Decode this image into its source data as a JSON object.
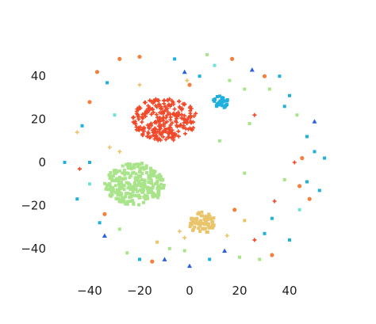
{
  "chart_data": {
    "type": "scatter",
    "title": "",
    "xlabel": "",
    "ylabel": "",
    "xlim": [
      -55,
      57
    ],
    "ylim": [
      -56,
      57
    ],
    "grid": false,
    "legend": "none",
    "xticks": [
      -40,
      -20,
      0,
      20,
      40
    ],
    "yticks": [
      -40,
      -20,
      0,
      20,
      40
    ],
    "xtick_labels": [
      "−40",
      "−20",
      "0",
      "20",
      "40"
    ],
    "ytick_labels": [
      "−40",
      "−20",
      "0",
      "20",
      "40"
    ],
    "colors": {
      "red": "#f0492a",
      "green": "#a9e48a",
      "yellow": "#e9c46b",
      "cyan": "#1fb0dc",
      "blue": "#2e5fe0",
      "orange": "#f3803f",
      "aqua": "#6fe2d6"
    },
    "clusters": [
      {
        "color": "red",
        "marker": "plus",
        "cx": -10,
        "cy": 20,
        "rx": 13,
        "ry": 10,
        "n": 260
      },
      {
        "color": "green",
        "marker": "square",
        "cx": -22,
        "cy": -10,
        "rx": 12,
        "ry": 10,
        "n": 280
      },
      {
        "color": "yellow",
        "marker": "square",
        "cx": 5,
        "cy": -28,
        "rx": 5.5,
        "ry": 5,
        "n": 70
      },
      {
        "color": "cyan",
        "marker": "square",
        "cx": 12,
        "cy": 28,
        "rx": 3.5,
        "ry": 3,
        "n": 35
      }
    ],
    "outliers": [
      {
        "x": -37,
        "y": 42,
        "color": "orange",
        "marker": "circle"
      },
      {
        "x": -28,
        "y": 48,
        "color": "orange",
        "marker": "circle"
      },
      {
        "x": -20,
        "y": 49,
        "color": "orange",
        "marker": "circle"
      },
      {
        "x": -6,
        "y": 48,
        "color": "cyan",
        "marker": "square"
      },
      {
        "x": -2,
        "y": 42,
        "color": "blue",
        "marker": "triangle"
      },
      {
        "x": -33,
        "y": 37,
        "color": "cyan",
        "marker": "square"
      },
      {
        "x": -20,
        "y": 36,
        "color": "yellow",
        "marker": "plus"
      },
      {
        "x": 0,
        "y": 36,
        "color": "orange",
        "marker": "circle"
      },
      {
        "x": -1,
        "y": 38,
        "color": "yellow",
        "marker": "plus"
      },
      {
        "x": -40,
        "y": 28,
        "color": "orange",
        "marker": "circle"
      },
      {
        "x": -45,
        "y": 14,
        "color": "yellow",
        "marker": "plus"
      },
      {
        "x": -30,
        "y": 22,
        "color": "aqua",
        "marker": "square"
      },
      {
        "x": -32,
        "y": 7,
        "color": "yellow",
        "marker": "plus"
      },
      {
        "x": -28,
        "y": 5,
        "color": "yellow",
        "marker": "plus"
      },
      {
        "x": -43,
        "y": 17,
        "color": "cyan",
        "marker": "square"
      },
      {
        "x": -50,
        "y": 0,
        "color": "cyan",
        "marker": "square"
      },
      {
        "x": -40,
        "y": 0,
        "color": "cyan",
        "marker": "square"
      },
      {
        "x": -44,
        "y": -3,
        "color": "red",
        "marker": "plus"
      },
      {
        "x": -40,
        "y": -10,
        "color": "aqua",
        "marker": "square"
      },
      {
        "x": -45,
        "y": -17,
        "color": "cyan",
        "marker": "square"
      },
      {
        "x": -34,
        "y": -24,
        "color": "orange",
        "marker": "circle"
      },
      {
        "x": -36,
        "y": -28,
        "color": "cyan",
        "marker": "square"
      },
      {
        "x": -34,
        "y": -34,
        "color": "blue",
        "marker": "triangle"
      },
      {
        "x": -28,
        "y": -31,
        "color": "green",
        "marker": "square"
      },
      {
        "x": -25,
        "y": -42,
        "color": "green",
        "marker": "square"
      },
      {
        "x": -20,
        "y": -45,
        "color": "cyan",
        "marker": "square"
      },
      {
        "x": -13,
        "y": -37,
        "color": "yellow",
        "marker": "square"
      },
      {
        "x": -10,
        "y": -45,
        "color": "blue",
        "marker": "triangle"
      },
      {
        "x": -15,
        "y": -46,
        "color": "orange",
        "marker": "circle"
      },
      {
        "x": -8,
        "y": -40,
        "color": "green",
        "marker": "square"
      },
      {
        "x": -2,
        "y": -41,
        "color": "green",
        "marker": "square"
      },
      {
        "x": 0,
        "y": -48,
        "color": "blue",
        "marker": "triangle"
      },
      {
        "x": 8,
        "y": -45,
        "color": "cyan",
        "marker": "square"
      },
      {
        "x": 14,
        "y": -41,
        "color": "blue",
        "marker": "triangle"
      },
      {
        "x": 15,
        "y": -34,
        "color": "yellow",
        "marker": "plus"
      },
      {
        "x": 18,
        "y": -22,
        "color": "orange",
        "marker": "circle"
      },
      {
        "x": 22,
        "y": -27,
        "color": "yellow",
        "marker": "square"
      },
      {
        "x": 26,
        "y": -36,
        "color": "red",
        "marker": "plus"
      },
      {
        "x": 30,
        "y": -33,
        "color": "cyan",
        "marker": "square"
      },
      {
        "x": 33,
        "y": -43,
        "color": "orange",
        "marker": "circle"
      },
      {
        "x": 33,
        "y": -26,
        "color": "cyan",
        "marker": "square"
      },
      {
        "x": 40,
        "y": -36,
        "color": "cyan",
        "marker": "square"
      },
      {
        "x": 44,
        "y": -22,
        "color": "aqua",
        "marker": "square"
      },
      {
        "x": 48,
        "y": -17,
        "color": "orange",
        "marker": "circle"
      },
      {
        "x": 52,
        "y": -13,
        "color": "cyan",
        "marker": "square"
      },
      {
        "x": 47,
        "y": -9,
        "color": "cyan",
        "marker": "square"
      },
      {
        "x": 44,
        "y": -11,
        "color": "orange",
        "marker": "circle"
      },
      {
        "x": 42,
        "y": 0,
        "color": "red",
        "marker": "plus"
      },
      {
        "x": 45,
        "y": 2,
        "color": "orange",
        "marker": "circle"
      },
      {
        "x": 50,
        "y": 5,
        "color": "cyan",
        "marker": "square"
      },
      {
        "x": 54,
        "y": 2,
        "color": "cyan",
        "marker": "square"
      },
      {
        "x": 47,
        "y": 12,
        "color": "cyan",
        "marker": "square"
      },
      {
        "x": 43,
        "y": 22,
        "color": "green",
        "marker": "square"
      },
      {
        "x": 50,
        "y": 19,
        "color": "blue",
        "marker": "triangle"
      },
      {
        "x": 38,
        "y": 26,
        "color": "cyan",
        "marker": "square"
      },
      {
        "x": 40,
        "y": 31,
        "color": "cyan",
        "marker": "square"
      },
      {
        "x": 32,
        "y": 34,
        "color": "green",
        "marker": "square"
      },
      {
        "x": 36,
        "y": 40,
        "color": "cyan",
        "marker": "square"
      },
      {
        "x": 30,
        "y": 40,
        "color": "orange",
        "marker": "circle"
      },
      {
        "x": 25,
        "y": 43,
        "color": "blue",
        "marker": "triangle"
      },
      {
        "x": 17,
        "y": 48,
        "color": "orange",
        "marker": "circle"
      },
      {
        "x": 7,
        "y": 50,
        "color": "green",
        "marker": "square"
      },
      {
        "x": 10,
        "y": 45,
        "color": "aqua",
        "marker": "square"
      },
      {
        "x": 4,
        "y": 40,
        "color": "cyan",
        "marker": "square"
      },
      {
        "x": 16,
        "y": 38,
        "color": "green",
        "marker": "square"
      },
      {
        "x": 22,
        "y": 34,
        "color": "green",
        "marker": "square"
      },
      {
        "x": 26,
        "y": 22,
        "color": "red",
        "marker": "plus"
      },
      {
        "x": 24,
        "y": 18,
        "color": "green",
        "marker": "square"
      },
      {
        "x": 12,
        "y": 10,
        "color": "green",
        "marker": "square"
      },
      {
        "x": 22,
        "y": -5,
        "color": "green",
        "marker": "square"
      },
      {
        "x": 34,
        "y": -18,
        "color": "red",
        "marker": "plus"
      },
      {
        "x": 38,
        "y": -8,
        "color": "green",
        "marker": "square"
      },
      {
        "x": 28,
        "y": -45,
        "color": "green",
        "marker": "square"
      },
      {
        "x": 20,
        "y": -44,
        "color": "green",
        "marker": "square"
      },
      {
        "x": -4,
        "y": -32,
        "color": "yellow",
        "marker": "plus"
      },
      {
        "x": -2,
        "y": -35,
        "color": "yellow",
        "marker": "plus"
      }
    ]
  }
}
